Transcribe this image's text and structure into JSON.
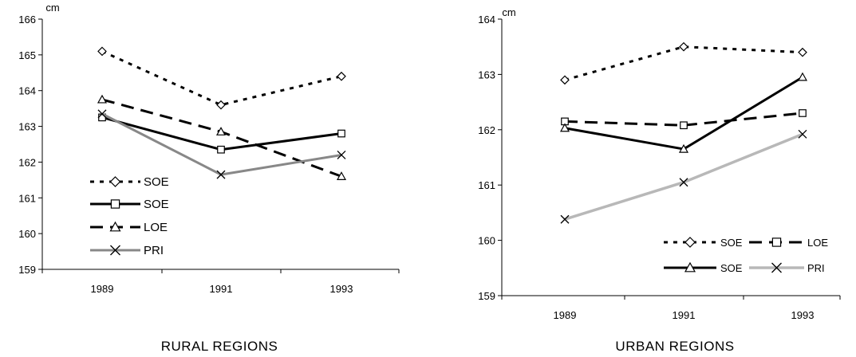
{
  "chart_data": [
    {
      "type": "line",
      "title": "RURAL REGIONS",
      "unit": "cm",
      "categories": [
        "1989",
        "1991",
        "1993"
      ],
      "ylim": [
        159,
        166
      ],
      "yticks": [
        159,
        160,
        161,
        162,
        163,
        164,
        165,
        166
      ],
      "grid": false,
      "legend_position": "bottom-left",
      "series": [
        {
          "name": "SOE",
          "marker": "diamond",
          "style": "dotted-black",
          "values": [
            165.1,
            163.6,
            164.4
          ]
        },
        {
          "name": "SOE",
          "marker": "square",
          "style": "solid-black",
          "values": [
            163.25,
            162.35,
            162.8
          ]
        },
        {
          "name": "LOE",
          "marker": "triangle",
          "style": "dashed-black",
          "values": [
            163.75,
            162.85,
            161.6
          ]
        },
        {
          "name": "PRI",
          "marker": "x",
          "style": "solid-gray",
          "values": [
            163.35,
            161.65,
            162.2
          ]
        }
      ]
    },
    {
      "type": "line",
      "title": "URBAN REGIONS",
      "unit": "cm",
      "categories": [
        "1989",
        "1991",
        "1993"
      ],
      "ylim": [
        159,
        164
      ],
      "yticks": [
        159,
        160,
        161,
        162,
        163,
        164
      ],
      "grid": false,
      "legend_position": "bottom-right",
      "series": [
        {
          "name": "SOE",
          "marker": "diamond",
          "style": "dotted-black",
          "values": [
            162.9,
            163.5,
            163.4
          ]
        },
        {
          "name": "LOE",
          "marker": "square",
          "style": "dashed-black",
          "values": [
            162.15,
            162.08,
            162.3
          ]
        },
        {
          "name": "SOE",
          "marker": "triangle",
          "style": "solid-black",
          "values": [
            162.03,
            161.65,
            162.95
          ]
        },
        {
          "name": "PRI",
          "marker": "x",
          "style": "solid-lightgray",
          "values": [
            160.38,
            161.05,
            161.92
          ]
        }
      ]
    }
  ]
}
